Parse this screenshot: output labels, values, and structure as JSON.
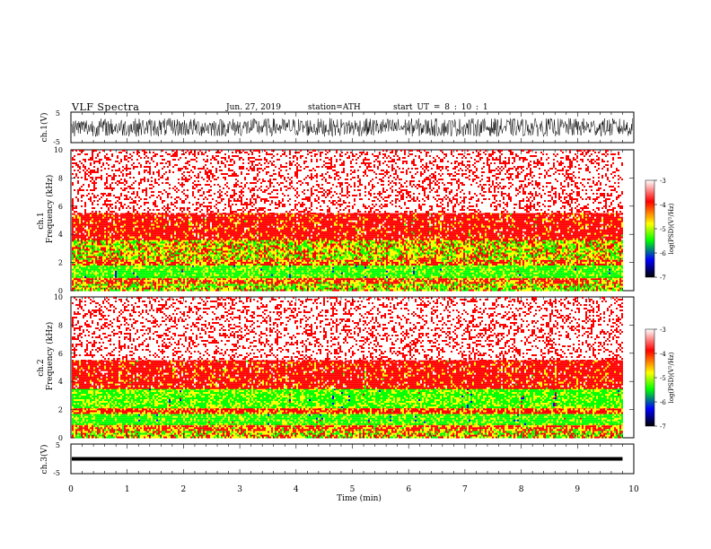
{
  "header": {
    "title": "VLF  Spectra",
    "date": "Jun. 27, 2019",
    "station": "station=ATH",
    "start": "start  UT  =    8  : 10 : 1"
  },
  "colorbar": {
    "label": "log(PSD)(V²/Hz)",
    "ticks": [
      "-3",
      "-4",
      "-5",
      "-6",
      "-7"
    ],
    "colors": [
      "#ffffff",
      "#ff0000",
      "#ffff00",
      "#00ff00",
      "#0000ff",
      "#000000"
    ]
  },
  "chart_data": [
    {
      "type": "line",
      "ylabel": "ch.1(V)",
      "ylim": [
        -5,
        5
      ],
      "yticks": [
        "5",
        "-5"
      ],
      "description_values": {
        "amplitude_range": [
          -3,
          3
        ]
      }
    },
    {
      "type": "heatmap",
      "ylabel": "ch.1\nFrequency (kHz)",
      "ylabel_lines": [
        "ch.1",
        "Frequency (kHz)"
      ],
      "ylim": [
        0,
        10
      ],
      "yticks": [
        "0",
        "2",
        "4",
        "6",
        "8",
        "10"
      ],
      "xlim": [
        0,
        9.8
      ],
      "bands": [
        {
          "f_low": 0.0,
          "f_high": 0.6,
          "level": -4.6
        },
        {
          "f_low": 0.6,
          "f_high": 1.0,
          "level": -4.3
        },
        {
          "f_low": 1.0,
          "f_high": 1.8,
          "level": -4.9
        },
        {
          "f_low": 1.8,
          "f_high": 2.3,
          "level": -4.3
        },
        {
          "f_low": 2.3,
          "f_high": 3.6,
          "level": -4.5
        },
        {
          "f_low": 3.6,
          "f_high": 5.5,
          "level": -4.0
        },
        {
          "f_low": 5.5,
          "f_high": 10.0,
          "level": -3.4
        }
      ]
    },
    {
      "type": "heatmap",
      "ylabel": "ch.2\nFrequency (kHz)",
      "ylabel_lines": [
        "ch.2",
        "Frequency (kHz)"
      ],
      "ylim": [
        0,
        10
      ],
      "yticks": [
        "0",
        "2",
        "4",
        "6",
        "8",
        "10"
      ],
      "xlim": [
        0,
        9.8
      ],
      "bands": [
        {
          "f_low": 0.0,
          "f_high": 0.6,
          "level": -4.5
        },
        {
          "f_low": 0.6,
          "f_high": 1.0,
          "level": -4.3
        },
        {
          "f_low": 1.0,
          "f_high": 1.8,
          "level": -4.9
        },
        {
          "f_low": 1.8,
          "f_high": 2.2,
          "level": -4.2
        },
        {
          "f_low": 2.2,
          "f_high": 3.5,
          "level": -4.8
        },
        {
          "f_low": 3.5,
          "f_high": 5.5,
          "level": -4.0
        },
        {
          "f_low": 5.5,
          "f_high": 10.0,
          "level": -3.4
        }
      ]
    },
    {
      "type": "line",
      "ylabel": "ch.3(V)",
      "ylim": [
        -5,
        5
      ],
      "yticks": [
        "5",
        "-5"
      ],
      "xlabel": "Time  (min)",
      "xlim": [
        0,
        10
      ],
      "xticks": [
        "0",
        "1",
        "2",
        "3",
        "4",
        "5",
        "6",
        "7",
        "8",
        "9",
        "10"
      ],
      "description_values": {
        "level": 0
      }
    }
  ]
}
